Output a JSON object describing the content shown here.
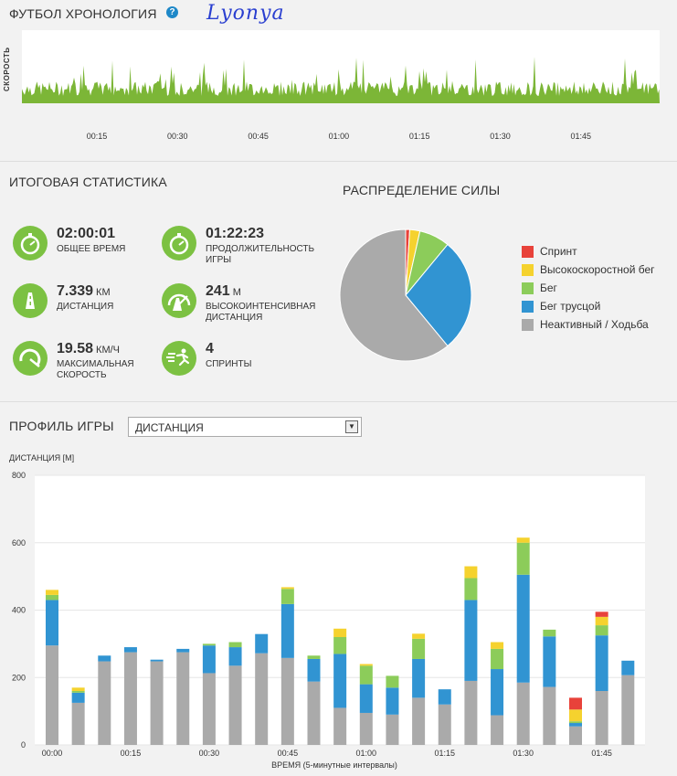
{
  "timeline": {
    "title": "ФУТБОЛ ХРОНОЛОГИЯ",
    "help_icon": "?",
    "signature": "Lyonya",
    "ylabel": "СКОРОСТЬ",
    "ticks": [
      "00:15",
      "00:30",
      "00:45",
      "01:00",
      "01:15",
      "01:30",
      "01:45"
    ]
  },
  "stats": {
    "title": "ИТОГОВАЯ СТАТИСТИКА",
    "items": [
      {
        "value": "02:00:01",
        "unit": "",
        "label": "ОБЩЕЕ ВРЕМЯ",
        "icon": "stopwatch-icon"
      },
      {
        "value": "01:22:23",
        "unit": "",
        "label": "ПРОДОЛЖИТЕЛЬНОСТЬ ИГРЫ",
        "icon": "stopwatch-icon"
      },
      {
        "value": "7.339",
        "unit": "КМ",
        "label": "ДИСТАНЦИЯ",
        "icon": "road-icon"
      },
      {
        "value": "241",
        "unit": "М",
        "label": "ВЫСОКОИНТЕНСИВНАЯ ДИСТАНЦИЯ",
        "icon": "intensity-road-icon"
      },
      {
        "value": "19.58",
        "unit": "КМ/Ч",
        "label": "МАКСИМАЛЬНАЯ СКОРОСТЬ",
        "icon": "speedometer-icon"
      },
      {
        "value": "4",
        "unit": "",
        "label": "СПРИНТЫ",
        "icon": "sprint-runner-icon"
      }
    ]
  },
  "colors": {
    "accent_green": "#7cc142",
    "sprint": "#e8423a",
    "high_speed": "#f5d22e",
    "run": "#8ccc5a",
    "jog": "#3194d2",
    "inactive": "#aaaaaa"
  },
  "distribution": {
    "title": "РАСПРЕДЕЛЕНИЕ СИЛЫ",
    "legend": [
      "Спринт",
      "Высокоскоростной бег",
      "Бег",
      "Бег трусцой",
      "Неактивный / Ходьба"
    ]
  },
  "profile": {
    "title": "ПРОФИЛЬ ИГРЫ",
    "select_value": "ДИСТАНЦИЯ",
    "ylabel": "ДИСТАНЦИЯ [М]",
    "xlabel": "ВРЕМЯ (5-минутные интервалы)"
  },
  "chart_data": [
    {
      "type": "pie",
      "title": "РАСПРЕДЕЛЕНИЕ СИЛЫ",
      "labels": [
        "Спринт",
        "Высокоскоростной бег",
        "Бег",
        "Бег трусцой",
        "Неактивный / Ходьба"
      ],
      "values": [
        1,
        2.5,
        7.5,
        28,
        61
      ]
    },
    {
      "type": "bar",
      "stacked": true,
      "ylabel": "ДИСТАНЦИЯ [М]",
      "xlabel": "ВРЕМЯ (5-минутные интервалы)",
      "ylim": [
        0,
        800
      ],
      "yticks": [
        0,
        200,
        400,
        600,
        800
      ],
      "x_tick_labels": [
        "00:00",
        "00:15",
        "00:30",
        "00:45",
        "01:00",
        "01:15",
        "01:30",
        "01:45"
      ],
      "grid": true,
      "series": [
        {
          "name": "Неактивный / Ходьба",
          "values": [
            295,
            125,
            248,
            275,
            248,
            275,
            213,
            235,
            272,
            258,
            188,
            110,
            95,
            90,
            140,
            120,
            190,
            88,
            185,
            172,
            55,
            160,
            207
          ]
        },
        {
          "name": "Бег трусцой",
          "values": [
            135,
            30,
            17,
            15,
            5,
            10,
            82,
            55,
            57,
            160,
            67,
            160,
            85,
            80,
            115,
            45,
            240,
            137,
            320,
            150,
            10,
            165,
            43
          ]
        },
        {
          "name": "Бег",
          "values": [
            15,
            5,
            0,
            0,
            0,
            0,
            5,
            15,
            0,
            45,
            10,
            50,
            55,
            35,
            60,
            0,
            65,
            60,
            95,
            20,
            5,
            30,
            0
          ]
        },
        {
          "name": "Высокоскоростной бег",
          "values": [
            15,
            10,
            0,
            0,
            0,
            0,
            0,
            0,
            0,
            5,
            0,
            25,
            5,
            0,
            15,
            0,
            35,
            20,
            15,
            0,
            35,
            25,
            0
          ]
        },
        {
          "name": "Спринт",
          "values": [
            0,
            0,
            0,
            0,
            0,
            0,
            0,
            0,
            0,
            0,
            0,
            0,
            0,
            0,
            0,
            0,
            0,
            0,
            0,
            0,
            35,
            15,
            0
          ]
        }
      ]
    }
  ]
}
